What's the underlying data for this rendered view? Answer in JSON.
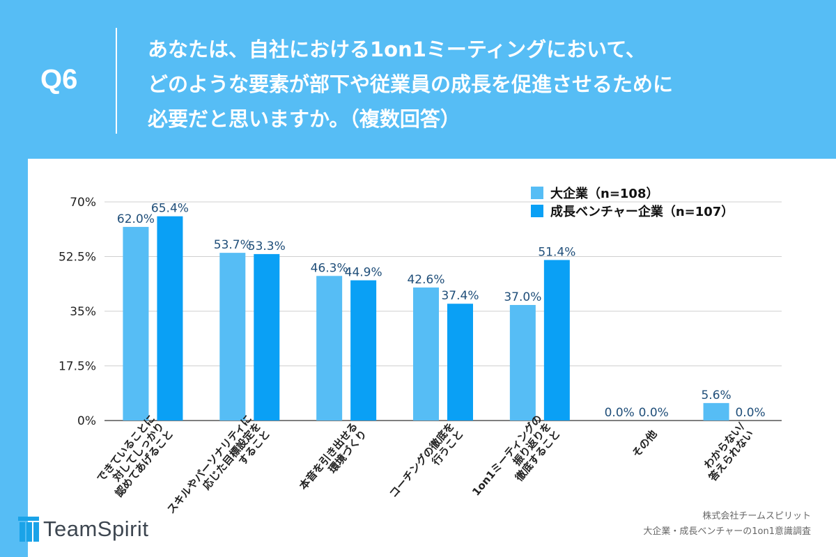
{
  "question": {
    "label": "Q6",
    "lines": [
      "あなたは、自社における1on1ミーティングにおいて、",
      "どのような要素が部下や従業員の成長を促進させるために",
      "必要だと思いますか。（複数回答）"
    ]
  },
  "chart_data": {
    "type": "bar",
    "categories": [
      [
        "できていることに",
        "対してしっかり",
        "認めてあげること"
      ],
      [
        "スキルやパーソナリティに",
        "応じた目標設定を",
        "すること"
      ],
      [
        "本音を引き出せる",
        "環境づくり"
      ],
      [
        "コーチングの徹底を",
        "行うこと"
      ],
      [
        "1on1ミーティングの",
        "振り返りを",
        "徹底すること"
      ],
      [
        "その他"
      ],
      [
        "わからない/",
        "答えられない"
      ]
    ],
    "series": [
      {
        "name": "大企業（n=108）",
        "color": "#56bdf5",
        "values": [
          62.0,
          53.7,
          46.3,
          42.6,
          37.0,
          0.0,
          5.6
        ],
        "labels": [
          "62.0%",
          "53.7%",
          "46.3%",
          "42.6%",
          "37.0%",
          "0.0%",
          "5.6%"
        ]
      },
      {
        "name": "成長ベンチャー企業（n=107）",
        "color": "#0aa0f5",
        "values": [
          65.4,
          53.3,
          44.9,
          37.4,
          51.4,
          0.0,
          0.0
        ],
        "labels": [
          "65.4%",
          "53.3%",
          "44.9%",
          "37.4%",
          "51.4%",
          "0.0%",
          "0.0%"
        ]
      }
    ],
    "ylim": [
      0,
      70
    ],
    "yticks": [
      0,
      17.5,
      35,
      52.5,
      70
    ],
    "ytick_labels": [
      "0%",
      "17.5%",
      "35%",
      "52.5%",
      "70%"
    ],
    "grid": true,
    "legend": "top-right",
    "label_color": "#1f4e79"
  },
  "brand": {
    "name": "TeamSpirit"
  },
  "credit": {
    "line1": "株式会社チームスピリット",
    "line2": "大企業・成長ベンチャーの1on1意識調査"
  }
}
